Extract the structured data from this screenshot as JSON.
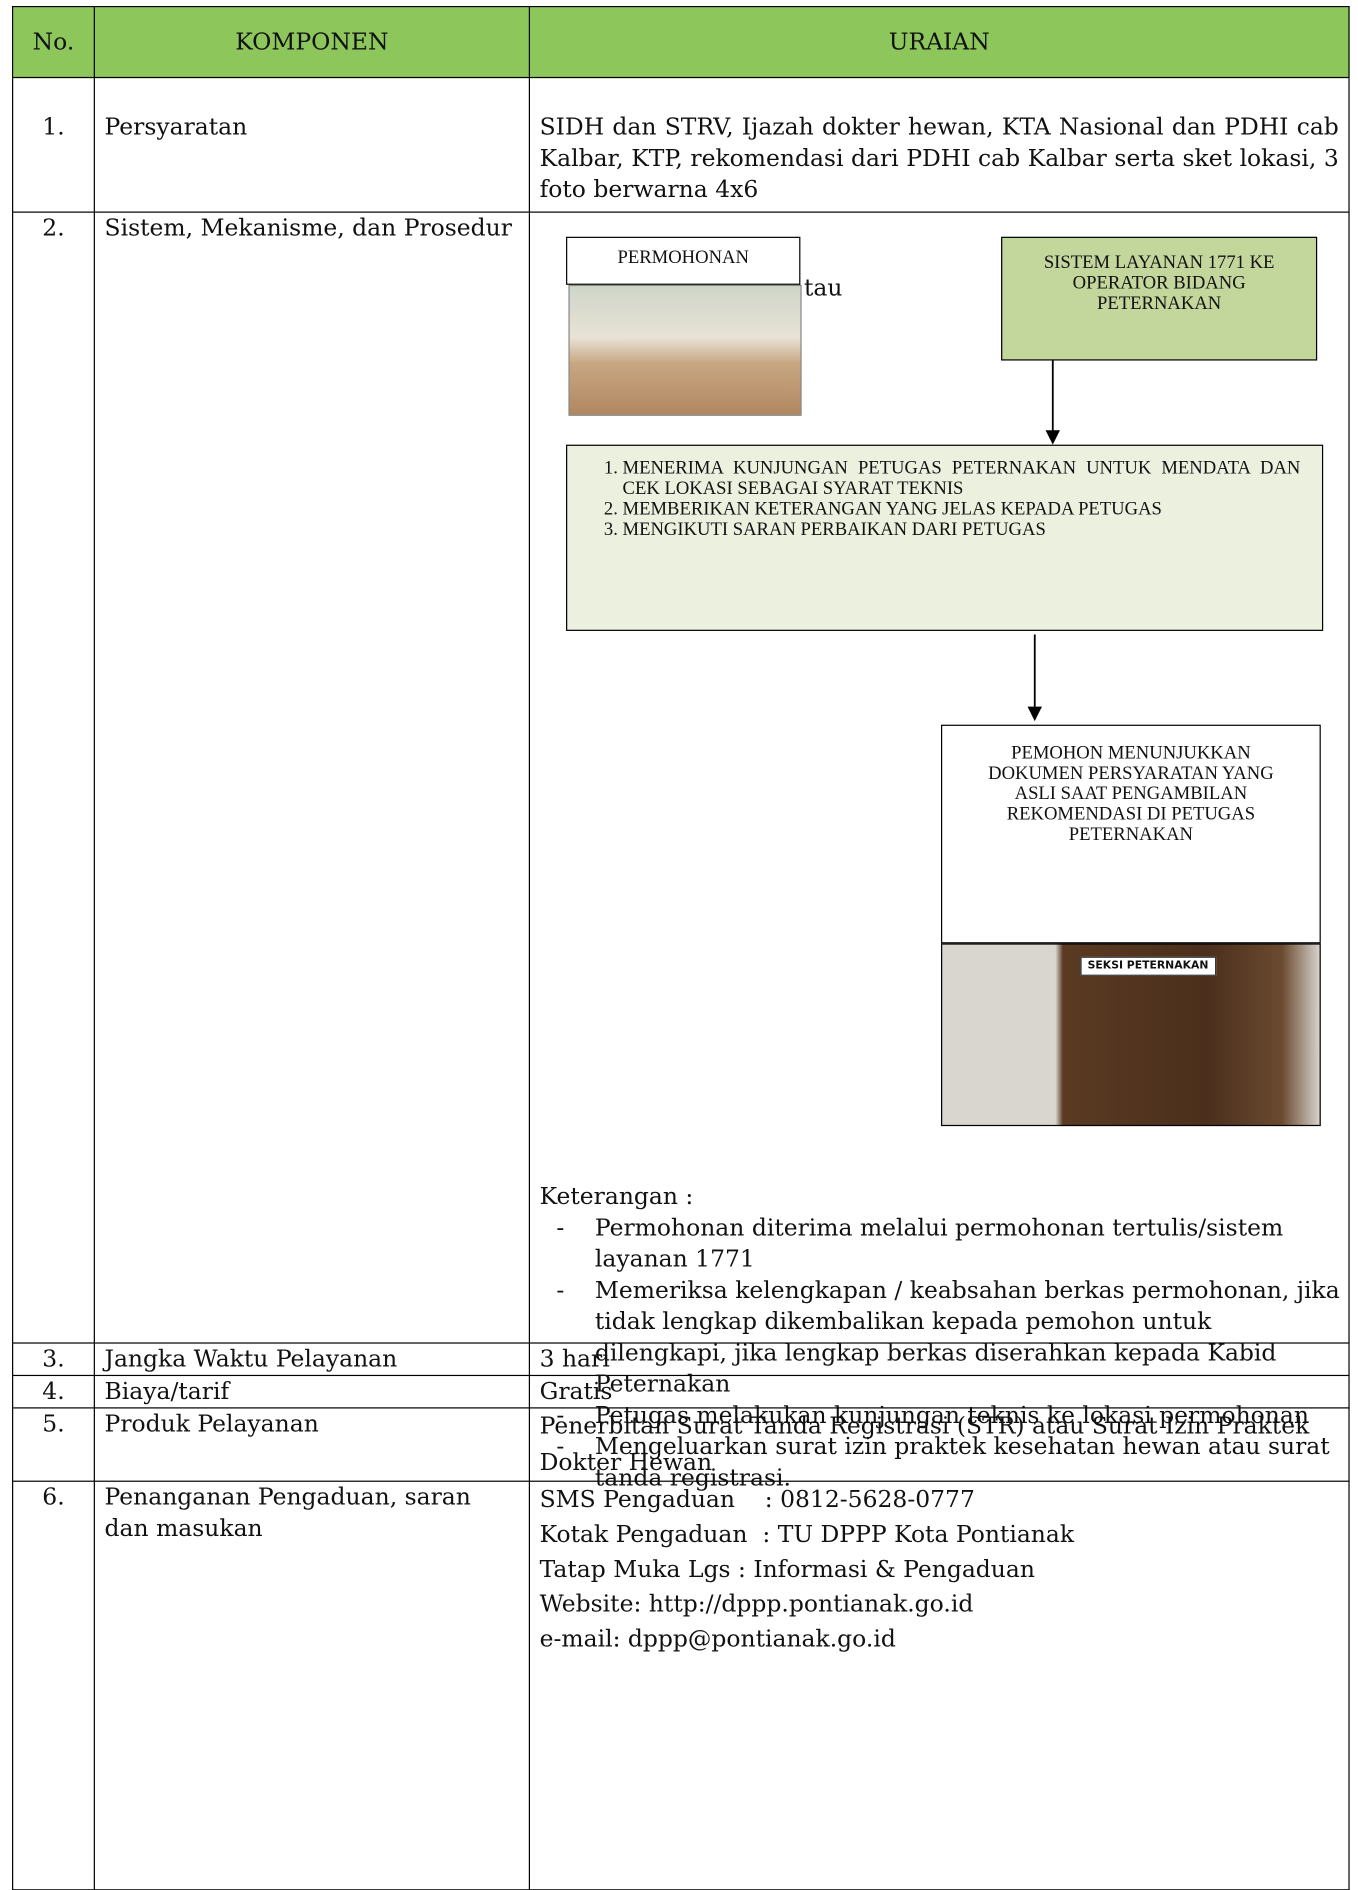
{
  "table": {
    "headers": [
      "No.",
      "KOMPONEN",
      "URAIAN"
    ],
    "rows": [
      {
        "no": "1.",
        "component": "Persyaratan",
        "content": "SIDH dan STRV, Ijazah dokter hewan, KTA Nasional dan PDHI cab Kalbar, KTP, rekomendasi dari PDHI cab Kalbar serta sket lokasi, 3 foto berwarna 4x6"
      },
      {
        "no": "2.",
        "component": "Sistem, Mekanisme, dan Prosedur",
        "content": {
          "request_box": "PERMOHONAN",
          "or_text": "tau",
          "system_box": "SISTEM LAYANAN 1771 KE OPERATOR BIDANG PETERNAKAN",
          "steps": [
            "MENERIMA KUNJUNGAN PETUGAS PETERNAKAN UNTUK MENDATA DAN CEK LOKASI SEBAGAI SYARAT TEKNIS",
            "MEMBERIKAN KETERANGAN YANG JELAS KEPADA PETUGAS",
            "MENGIKUTI SARAN PERBAIKAN DARI PETUGAS"
          ],
          "final_box": "PEMOHON MENUNJUKKAN DOKUMEN PERSYARATAN YANG ASLI SAAT PENGAMBILAN REKOMENDASI DI PETUGAS PETERNAKAN",
          "door_sign": "SEKSI PETERNAKAN",
          "note_title": "Keterangan :",
          "notes": [
            "Permohonan diterima melalui permohonan tertulis/sistem layanan 1771",
            "Memeriksa kelengkapan / keabsahan berkas permohonan, jika tidak lengkap dikembalikan kepada pemohon untuk dilengkapi, jika lengkap berkas diserahkan kepada Kabid Peternakan",
            "Petugas melakukan kunjungan teknis ke lokasi permohonan",
            "Mengeluarkan surat izin praktek kesehatan hewan atau surat tanda registrasi."
          ]
        }
      },
      {
        "no": "3.",
        "component": "Jangka Waktu Pelayanan",
        "content": "3 hari"
      },
      {
        "no": "4.",
        "component": "Biaya/tarif",
        "content": "Gratis"
      },
      {
        "no": "5.",
        "component": "Produk Pelayanan",
        "content": "Penerbitan Surat Tanda Registrasi (STR) atau Surat Izin Praktek Dokter Hewan"
      },
      {
        "no": "6.",
        "component": "Penanganan Pengaduan, saran dan masukan",
        "content": [
          "SMS Pengaduan    : 0812-5628-0777",
          "Kotak Pengaduan  : TU DPPP Kota Pontianak",
          "Tatap Muka Lgs : Informasi & Pengaduan",
          "Website: http://dppp.pontianak.go.id",
          "e-mail: dppp@pontianak.go.id"
        ]
      }
    ]
  }
}
